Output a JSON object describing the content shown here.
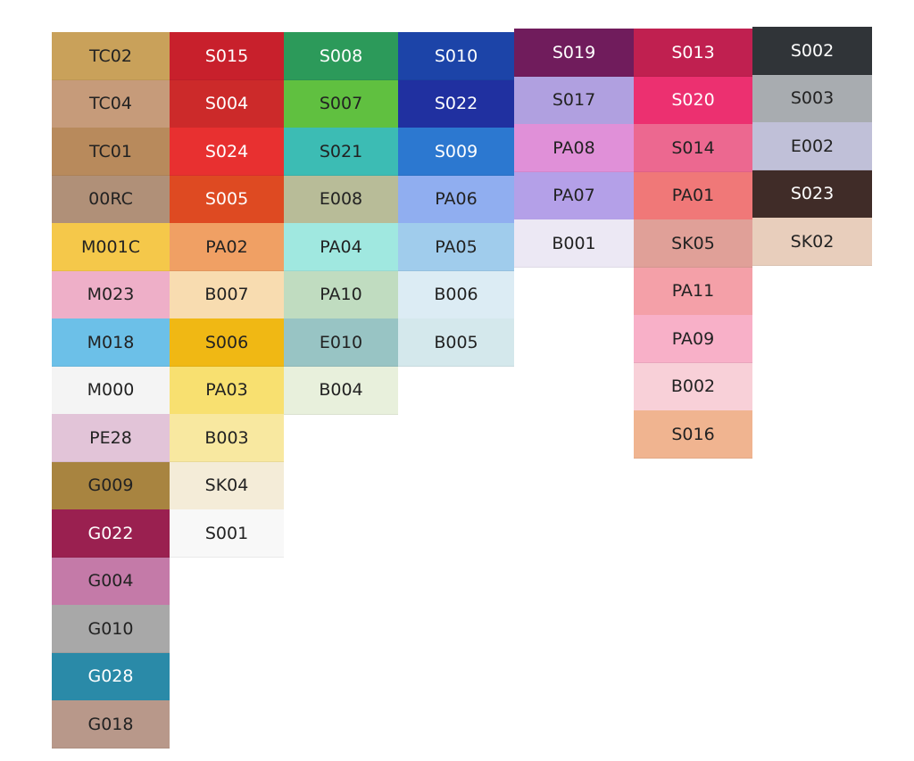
{
  "columns": [
    {
      "swatches": [
        {
          "label": "TC02",
          "color": "#c9a15a"
        },
        {
          "label": "TC04",
          "color": "#c69b7a"
        },
        {
          "label": "TC01",
          "color": "#b88a5c"
        },
        {
          "label": "00RC",
          "color": "#b09078"
        },
        {
          "label": "M001C",
          "color": "#f5c84a"
        },
        {
          "label": "M023",
          "color": "#eeafc8"
        },
        {
          "label": "M018",
          "color": "#6cc0e8"
        },
        {
          "label": "M000",
          "color": "#f4f4f4"
        },
        {
          "label": "PE28",
          "color": "#e2c4d8"
        },
        {
          "label": "G009",
          "color": "#a88440"
        },
        {
          "label": "G022",
          "color": "#9a2050"
        },
        {
          "label": "G004",
          "color": "#c47aa8"
        },
        {
          "label": "G010",
          "color": "#a8a8a8"
        },
        {
          "label": "G028",
          "color": "#2a8aa8"
        },
        {
          "label": "G018",
          "color": "#b8988a"
        }
      ]
    },
    {
      "swatches": [
        {
          "label": "S015",
          "color": "#c8202c"
        },
        {
          "label": "S004",
          "color": "#cc2a2a"
        },
        {
          "label": "S024",
          "color": "#e83030"
        },
        {
          "label": "S005",
          "color": "#de4a22"
        },
        {
          "label": "PA02",
          "color": "#f0a064"
        },
        {
          "label": "B007",
          "color": "#f8dcb0"
        },
        {
          "label": "S006",
          "color": "#f0b814"
        },
        {
          "label": "PA03",
          "color": "#f8e070"
        },
        {
          "label": "B003",
          "color": "#f8e8a0"
        },
        {
          "label": "SK04",
          "color": "#f4ecd8"
        },
        {
          "label": "S001",
          "color": "#f8f8f8"
        }
      ]
    },
    {
      "swatches": [
        {
          "label": "S008",
          "color": "#2c9a5a"
        },
        {
          "label": "S007",
          "color": "#60c040"
        },
        {
          "label": "S021",
          "color": "#3cbcb4"
        },
        {
          "label": "E008",
          "color": "#b8bc98"
        },
        {
          "label": "PA04",
          "color": "#a0e8e0"
        },
        {
          "label": "PA10",
          "color": "#c0dcc0"
        },
        {
          "label": "E010",
          "color": "#98c4c4"
        },
        {
          "label": "B004",
          "color": "#e8f0dc"
        }
      ]
    },
    {
      "swatches": [
        {
          "label": "S010",
          "color": "#1c44a8"
        },
        {
          "label": "S022",
          "color": "#2030a0"
        },
        {
          "label": "S009",
          "color": "#2c78d0"
        },
        {
          "label": "PA06",
          "color": "#90aef0"
        },
        {
          "label": "PA05",
          "color": "#a0ccec"
        },
        {
          "label": "B006",
          "color": "#dcecf4"
        },
        {
          "label": "B005",
          "color": "#d4e8ec"
        }
      ]
    },
    {
      "swatches": [
        {
          "label": "S019",
          "color": "#701c5c"
        },
        {
          "label": "S017",
          "color": "#b0a0e0"
        },
        {
          "label": "PA08",
          "color": "#e090d8"
        },
        {
          "label": "PA07",
          "color": "#b4a0e8"
        },
        {
          "label": "B001",
          "color": "#ece8f4"
        }
      ]
    },
    {
      "swatches": [
        {
          "label": "S013",
          "color": "#c02050"
        },
        {
          "label": "S020",
          "color": "#ec3070"
        },
        {
          "label": "S014",
          "color": "#ec6890"
        },
        {
          "label": "PA01",
          "color": "#f07878"
        },
        {
          "label": "SK05",
          "color": "#e0a098"
        },
        {
          "label": "PA11",
          "color": "#f4a0a8"
        },
        {
          "label": "PA09",
          "color": "#f8b0c8"
        },
        {
          "label": "B002",
          "color": "#f8d0d8"
        },
        {
          "label": "S016",
          "color": "#f0b490"
        }
      ]
    },
    {
      "swatches": [
        {
          "label": "S002",
          "color": "#303438"
        },
        {
          "label": "S003",
          "color": "#a8acb0"
        },
        {
          "label": "E002",
          "color": "#c0c0d8"
        },
        {
          "label": "S023",
          "color": "#402c28"
        },
        {
          "label": "SK02",
          "color": "#e8cebc"
        }
      ]
    }
  ]
}
